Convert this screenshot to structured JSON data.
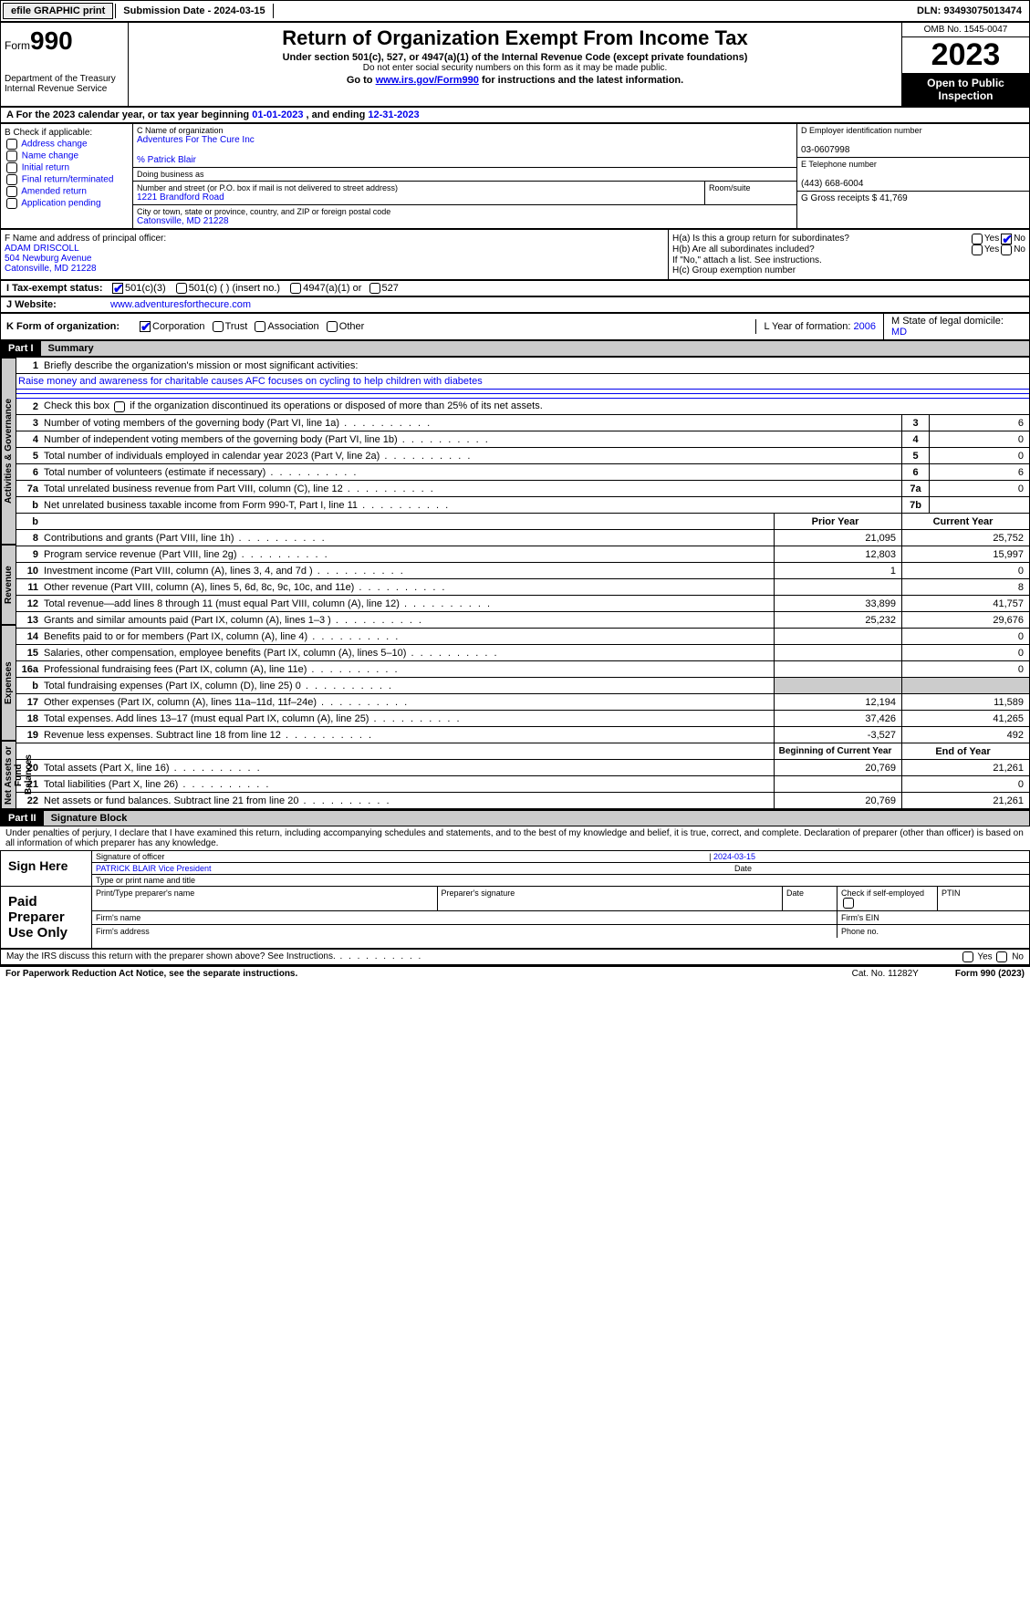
{
  "topbar": {
    "efile": "efile GRAPHIC print",
    "subdate_label": "Submission Date - ",
    "subdate": "2024-03-15",
    "dln_label": "DLN: ",
    "dln": "93493075013474"
  },
  "header": {
    "form_label": "Form",
    "form_num": "990",
    "dept": "Department of the Treasury\nInternal Revenue Service",
    "title": "Return of Organization Exempt From Income Tax",
    "sub": "Under section 501(c), 527, or 4947(a)(1) of the Internal Revenue Code (except private foundations)",
    "sub2": "Do not enter social security numbers on this form as it may be made public.",
    "goto_pre": "Go to ",
    "goto_link": "www.irs.gov/Form990",
    "goto_post": " for instructions and the latest information.",
    "omb": "OMB No. 1545-0047",
    "year": "2023",
    "open": "Open to Public Inspection"
  },
  "row_a": {
    "pre": "A For the 2023 calendar year, or tax year beginning ",
    "begin": "01-01-2023",
    "mid": " , and ending ",
    "end": "12-31-2023"
  },
  "box_b": {
    "label": "B Check if applicable:",
    "items": [
      "Address change",
      "Name change",
      "Initial return",
      "Final return/terminated",
      "Amended return",
      "Application pending"
    ]
  },
  "box_c": {
    "name_label": "C Name of organization",
    "name": "Adventures For The Cure Inc",
    "care_of": "% Patrick Blair",
    "dba_label": "Doing business as",
    "street_label": "Number and street (or P.O. box if mail is not delivered to street address)",
    "street": "1221 Brandford Road",
    "room_label": "Room/suite",
    "city_label": "City or town, state or province, country, and ZIP or foreign postal code",
    "city": "Catonsville, MD  21228"
  },
  "box_d": {
    "label": "D Employer identification number",
    "val": "03-0607998"
  },
  "box_e": {
    "label": "E Telephone number",
    "val": "(443) 668-6004"
  },
  "box_g": {
    "label": "G Gross receipts $ ",
    "val": "41,769"
  },
  "box_f": {
    "label": "F  Name and address of principal officer:",
    "name": "ADAM DRISCOLL",
    "street": "504 Newburg Avenue",
    "city": "Catonsville, MD  21228"
  },
  "box_h": {
    "ha": "H(a)  Is this a group return for subordinates?",
    "hb": "H(b)  Are all subordinates included?",
    "hb_note": "If \"No,\" attach a list. See instructions.",
    "hc": "H(c)  Group exemption number",
    "yes": "Yes",
    "no": "No"
  },
  "tax_status": {
    "label": "I   Tax-exempt status:",
    "opts": [
      "501(c)(3)",
      "501(c) (  ) (insert no.)",
      "4947(a)(1) or",
      "527"
    ]
  },
  "website": {
    "label": "J   Website:",
    "val": "www.adventuresforthecure.com"
  },
  "box_k": {
    "label": "K Form of organization:",
    "opts": [
      "Corporation",
      "Trust",
      "Association",
      "Other"
    ]
  },
  "box_l": {
    "label": "L Year of formation: ",
    "val": "2006"
  },
  "box_m": {
    "label": "M State of legal domicile:",
    "val": "MD"
  },
  "part1": {
    "hdr": "Part I",
    "title": "Summary"
  },
  "summary": {
    "vtabs": [
      "Activities & Governance",
      "Revenue",
      "Expenses",
      "Net Assets or Fund Balances"
    ],
    "line1_label": "Briefly describe the organization's mission or most significant activities:",
    "mission": "Raise money and awareness for charitable causes AFC focuses on cycling to help children with diabetes",
    "line2": "Check this box       if the organization discontinued its operations or disposed of more than 25% of its net assets.",
    "lines_gov": [
      {
        "n": "3",
        "d": "Number of voting members of the governing body (Part VI, line 1a)",
        "box": "3",
        "v": "6"
      },
      {
        "n": "4",
        "d": "Number of independent voting members of the governing body (Part VI, line 1b)",
        "box": "4",
        "v": "0"
      },
      {
        "n": "5",
        "d": "Total number of individuals employed in calendar year 2023 (Part V, line 2a)",
        "box": "5",
        "v": "0"
      },
      {
        "n": "6",
        "d": "Total number of volunteers (estimate if necessary)",
        "box": "6",
        "v": "6"
      },
      {
        "n": "7a",
        "d": "Total unrelated business revenue from Part VIII, column (C), line 12",
        "box": "7a",
        "v": "0"
      },
      {
        "n": "b",
        "d": "Net unrelated business taxable income from Form 990-T, Part I, line 11",
        "box": "7b",
        "v": ""
      }
    ],
    "col_prior": "Prior Year",
    "col_current": "Current Year",
    "lines_rev": [
      {
        "n": "8",
        "d": "Contributions and grants (Part VIII, line 1h)",
        "p": "21,095",
        "c": "25,752"
      },
      {
        "n": "9",
        "d": "Program service revenue (Part VIII, line 2g)",
        "p": "12,803",
        "c": "15,997"
      },
      {
        "n": "10",
        "d": "Investment income (Part VIII, column (A), lines 3, 4, and 7d )",
        "p": "1",
        "c": "0"
      },
      {
        "n": "11",
        "d": "Other revenue (Part VIII, column (A), lines 5, 6d, 8c, 9c, 10c, and 11e)",
        "p": "",
        "c": "8"
      },
      {
        "n": "12",
        "d": "Total revenue—add lines 8 through 11 (must equal Part VIII, column (A), line 12)",
        "p": "33,899",
        "c": "41,757"
      }
    ],
    "lines_exp": [
      {
        "n": "13",
        "d": "Grants and similar amounts paid (Part IX, column (A), lines 1–3 )",
        "p": "25,232",
        "c": "29,676"
      },
      {
        "n": "14",
        "d": "Benefits paid to or for members (Part IX, column (A), line 4)",
        "p": "",
        "c": "0"
      },
      {
        "n": "15",
        "d": "Salaries, other compensation, employee benefits (Part IX, column (A), lines 5–10)",
        "p": "",
        "c": "0"
      },
      {
        "n": "16a",
        "d": "Professional fundraising fees (Part IX, column (A), line 11e)",
        "p": "",
        "c": "0"
      },
      {
        "n": "b",
        "d": "Total fundraising expenses (Part IX, column (D), line 25) 0",
        "p": "grey",
        "c": "grey"
      },
      {
        "n": "17",
        "d": "Other expenses (Part IX, column (A), lines 11a–11d, 11f–24e)",
        "p": "12,194",
        "c": "11,589"
      },
      {
        "n": "18",
        "d": "Total expenses. Add lines 13–17 (must equal Part IX, column (A), line 25)",
        "p": "37,426",
        "c": "41,265"
      },
      {
        "n": "19",
        "d": "Revenue less expenses. Subtract line 18 from line 12",
        "p": "-3,527",
        "c": "492"
      }
    ],
    "col_begin": "Beginning of Current Year",
    "col_end": "End of Year",
    "lines_net": [
      {
        "n": "20",
        "d": "Total assets (Part X, line 16)",
        "p": "20,769",
        "c": "21,261"
      },
      {
        "n": "21",
        "d": "Total liabilities (Part X, line 26)",
        "p": "",
        "c": "0"
      },
      {
        "n": "22",
        "d": "Net assets or fund balances. Subtract line 21 from line 20",
        "p": "20,769",
        "c": "21,261"
      }
    ]
  },
  "part2": {
    "hdr": "Part II",
    "title": "Signature Block"
  },
  "perjury": "Under penalties of perjury, I declare that I have examined this return, including accompanying schedules and statements, and to the best of my knowledge and belief, it is true, correct, and complete. Declaration of preparer (other than officer) is based on all information of which preparer has any knowledge.",
  "sign": {
    "here": "Sign Here",
    "date": "2024-03-15",
    "sig_label": "Signature of officer",
    "officer_name": "PATRICK BLAIR  Vice President",
    "type_label": "Type or print name and title",
    "date_label": "Date"
  },
  "paid": {
    "label": "Paid Preparer Use Only",
    "cols": [
      "Print/Type preparer's name",
      "Preparer's signature",
      "Date",
      "Check       if self-employed",
      "PTIN"
    ],
    "firm_name": "Firm's name",
    "firm_ein": "Firm's EIN",
    "firm_addr": "Firm's address",
    "phone": "Phone no."
  },
  "discuss": "May the IRS discuss this return with the preparer shown above? See Instructions.",
  "footer": {
    "notice": "For Paperwork Reduction Act Notice, see the separate instructions.",
    "cat": "Cat. No. 11282Y",
    "form": "Form 990 (2023)"
  }
}
